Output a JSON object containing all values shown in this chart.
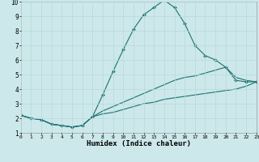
{
  "xlabel": "Humidex (Indice chaleur)",
  "xlim": [
    0,
    23
  ],
  "ylim": [
    1,
    10
  ],
  "background_color": "#cce8ea",
  "grid_color": "#b8d8da",
  "line_color": "#1e7272",
  "curve1_x": [
    0,
    1,
    2,
    3,
    4,
    5,
    6,
    7,
    8,
    9,
    10,
    11,
    12,
    13,
    14,
    15,
    16,
    17,
    18,
    19,
    20,
    21,
    22,
    23
  ],
  "curve1_y": [
    2.2,
    2.0,
    1.9,
    1.6,
    1.5,
    1.4,
    1.5,
    2.1,
    3.6,
    5.2,
    6.7,
    8.1,
    9.1,
    9.6,
    10.1,
    9.6,
    8.5,
    7.0,
    6.3,
    6.0,
    5.5,
    4.6,
    4.5,
    4.5
  ],
  "curve2_x": [
    0,
    1,
    2,
    3,
    4,
    5,
    6,
    7,
    8,
    9,
    10,
    11,
    12,
    13,
    14,
    15,
    16,
    17,
    18,
    19,
    20,
    21,
    22,
    23
  ],
  "curve2_y": [
    2.2,
    2.0,
    1.9,
    1.6,
    1.5,
    1.4,
    1.5,
    2.1,
    2.5,
    2.8,
    3.1,
    3.4,
    3.7,
    4.0,
    4.3,
    4.6,
    4.8,
    4.9,
    5.1,
    5.3,
    5.5,
    4.8,
    4.6,
    4.5
  ],
  "curve3_x": [
    0,
    1,
    2,
    3,
    4,
    5,
    6,
    7,
    8,
    9,
    10,
    11,
    12,
    13,
    14,
    15,
    16,
    17,
    18,
    19,
    20,
    21,
    22,
    23
  ],
  "curve3_y": [
    2.2,
    2.0,
    1.9,
    1.6,
    1.5,
    1.4,
    1.5,
    2.1,
    2.3,
    2.4,
    2.6,
    2.8,
    3.0,
    3.1,
    3.3,
    3.4,
    3.5,
    3.6,
    3.7,
    3.8,
    3.9,
    4.0,
    4.2,
    4.5
  ],
  "xticks": [
    0,
    1,
    2,
    3,
    4,
    5,
    6,
    7,
    8,
    9,
    10,
    11,
    12,
    13,
    14,
    15,
    16,
    17,
    18,
    19,
    20,
    21,
    22,
    23
  ],
  "yticks": [
    1,
    2,
    3,
    4,
    5,
    6,
    7,
    8,
    9,
    10
  ]
}
